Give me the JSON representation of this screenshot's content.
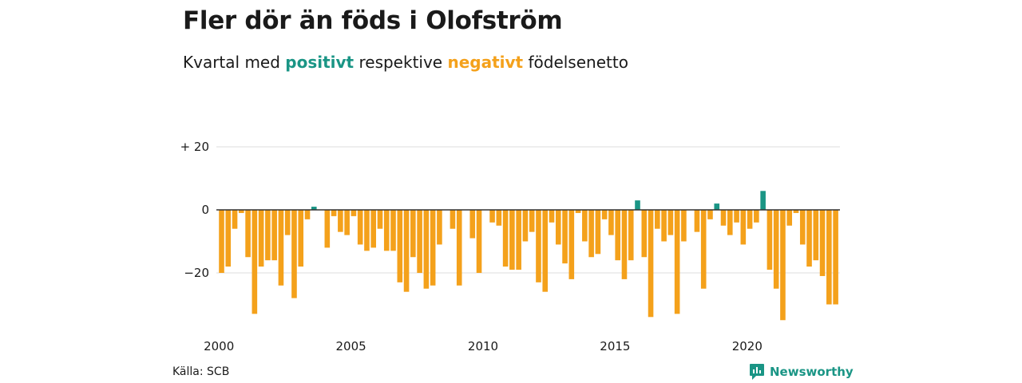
{
  "header": {
    "title": "Fler dör än föds i Olofström",
    "subtitle_pre": "Kvartal med ",
    "subtitle_pos": "positivt",
    "subtitle_mid": " respektive ",
    "subtitle_neg": "negativt",
    "subtitle_post": " födelsenetto"
  },
  "footer": {
    "source": "Källa: SCB",
    "brand": "Newsworthy"
  },
  "colors": {
    "positive": "#1a9585",
    "negative": "#f4a11b",
    "grid": "#dddddd",
    "zero": "#333333"
  },
  "chart_data": {
    "type": "bar",
    "title": "Fler dör än föds i Olofström",
    "subtitle": "Kvartal med positivt respektive negativt födelsenetto",
    "x_start": 2000,
    "x_step": 0.25,
    "xticks": [
      2000,
      2005,
      2010,
      2015,
      2020
    ],
    "xtick_labels": [
      "2000",
      "2005",
      "2010",
      "2015",
      "2020"
    ],
    "yticks": [
      20,
      0,
      -20
    ],
    "ytick_labels": [
      "+ 20",
      "0",
      "−20"
    ],
    "ylim": [
      -36,
      22
    ],
    "grid": true,
    "values": [
      -20,
      -18,
      -6,
      -1,
      -15,
      -33,
      -18,
      -16,
      -16,
      -24,
      -8,
      -28,
      -18,
      -3,
      1,
      0,
      -12,
      -2,
      -7,
      -8,
      -2,
      -11,
      -13,
      -12,
      -6,
      -13,
      -13,
      -23,
      -26,
      -15,
      -20,
      -25,
      -24,
      -11,
      0,
      -6,
      -24,
      0,
      -9,
      -20,
      0,
      -4,
      -5,
      -18,
      -19,
      -19,
      -10,
      -7,
      -23,
      -26,
      -4,
      -11,
      -17,
      -22,
      -1,
      -10,
      -15,
      -14,
      -3,
      -8,
      -16,
      -22,
      -16,
      3,
      -15,
      -34,
      -6,
      -10,
      -8,
      -33,
      -10,
      0,
      -7,
      -25,
      -3,
      2,
      -5,
      -8,
      -4,
      -11,
      -6,
      -4,
      6,
      -19,
      -25,
      -35,
      -5,
      -1,
      -11,
      -18,
      -16,
      -21,
      -30,
      -30
    ]
  }
}
